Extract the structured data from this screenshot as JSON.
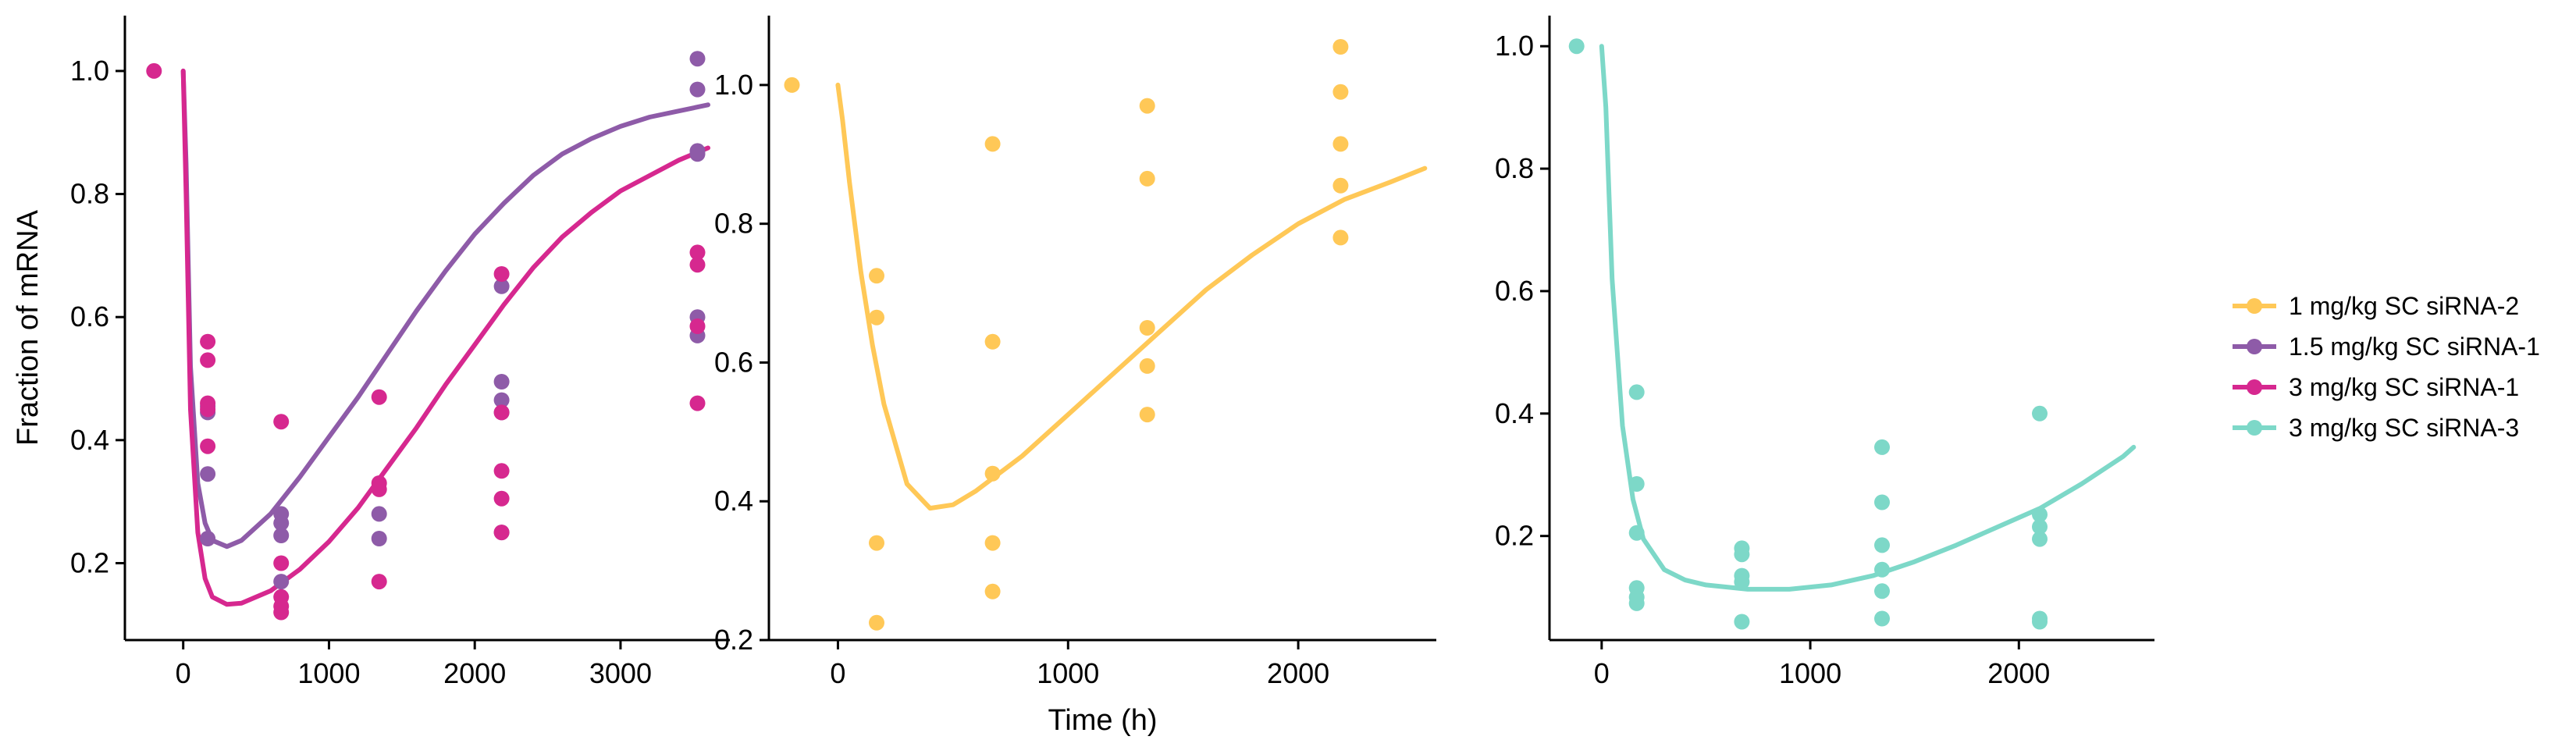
{
  "chart_data": [
    {
      "type": "scatter",
      "title": "",
      "xlabel": "",
      "ylabel": "Fraction of mRNA",
      "xlim": [
        -400,
        3750
      ],
      "ylim": [
        0.075,
        1.09
      ],
      "xticks": [
        0,
        1000,
        2000,
        3000
      ],
      "xtick_labels": [
        "0",
        "1000",
        "2000",
        "3000"
      ],
      "yticks": [
        0.2,
        0.4,
        0.6,
        0.8,
        1.0
      ],
      "ytick_labels": [
        "0.2",
        "0.4",
        "0.6",
        "0.8",
        "1.0"
      ],
      "series": [
        {
          "name": "1.5 mg/kg SC siRNA-1",
          "color": "#8E5BA8",
          "points": [
            [
              168,
              0.455
            ],
            [
              168,
              0.445
            ],
            [
              168,
              0.345
            ],
            [
              168,
              0.24
            ],
            [
              672,
              0.28
            ],
            [
              672,
              0.265
            ],
            [
              672,
              0.245
            ],
            [
              672,
              0.17
            ],
            [
              1344,
              0.28
            ],
            [
              1344,
              0.24
            ],
            [
              2184,
              0.65
            ],
            [
              2184,
              0.495
            ],
            [
              2184,
              0.465
            ],
            [
              2184,
              0.445
            ],
            [
              2184,
              0.25
            ],
            [
              3528,
              1.02
            ],
            [
              3528,
              0.97
            ],
            [
              3528,
              0.87
            ],
            [
              3528,
              0.865
            ],
            [
              3528,
              0.6
            ],
            [
              3528,
              0.57
            ]
          ],
          "fit": [
            [
              0,
              1.0
            ],
            [
              20,
              0.85
            ],
            [
              50,
              0.52
            ],
            [
              100,
              0.33
            ],
            [
              150,
              0.265
            ],
            [
              200,
              0.237
            ],
            [
              300,
              0.227
            ],
            [
              400,
              0.237
            ],
            [
              600,
              0.28
            ],
            [
              800,
              0.34
            ],
            [
              1000,
              0.405
            ],
            [
              1200,
              0.47
            ],
            [
              1400,
              0.54
            ],
            [
              1600,
              0.61
            ],
            [
              1800,
              0.675
            ],
            [
              2000,
              0.735
            ],
            [
              2200,
              0.785
            ],
            [
              2400,
              0.83
            ],
            [
              2600,
              0.865
            ],
            [
              2800,
              0.89
            ],
            [
              3000,
              0.91
            ],
            [
              3200,
              0.925
            ],
            [
              3400,
              0.935
            ],
            [
              3600,
              0.945
            ]
          ]
        },
        {
          "name": "3 mg/kg SC siRNA-1",
          "color": "#D6288F",
          "points": [
            [
              -200,
              1.0
            ],
            [
              168,
              0.56
            ],
            [
              168,
              0.53
            ],
            [
              168,
              0.46
            ],
            [
              168,
              0.45
            ],
            [
              168,
              0.39
            ],
            [
              672,
              0.43
            ],
            [
              672,
              0.2
            ],
            [
              672,
              0.145
            ],
            [
              672,
              0.13
            ],
            [
              672,
              0.12
            ],
            [
              1344,
              0.47
            ],
            [
              1344,
              0.33
            ],
            [
              1344,
              0.32
            ],
            [
              1344,
              0.17
            ],
            [
              2184,
              0.67
            ],
            [
              2184,
              0.445
            ],
            [
              2184,
              0.35
            ],
            [
              2184,
              0.305
            ],
            [
              2184,
              0.25
            ],
            [
              3528,
              0.705
            ],
            [
              3528,
              0.685
            ],
            [
              3528,
              0.585
            ],
            [
              3528,
              0.46
            ]
          ],
          "fit": [
            [
              0,
              1.0
            ],
            [
              20,
              0.8
            ],
            [
              50,
              0.45
            ],
            [
              100,
              0.25
            ],
            [
              150,
              0.175
            ],
            [
              200,
              0.145
            ],
            [
              300,
              0.133
            ],
            [
              400,
              0.135
            ],
            [
              600,
              0.155
            ],
            [
              800,
              0.19
            ],
            [
              1000,
              0.235
            ],
            [
              1200,
              0.29
            ],
            [
              1400,
              0.355
            ],
            [
              1600,
              0.42
            ],
            [
              1800,
              0.49
            ],
            [
              2000,
              0.555
            ],
            [
              2200,
              0.62
            ],
            [
              2400,
              0.68
            ],
            [
              2600,
              0.73
            ],
            [
              2800,
              0.77
            ],
            [
              3000,
              0.805
            ],
            [
              3200,
              0.83
            ],
            [
              3400,
              0.855
            ],
            [
              3600,
              0.875
            ]
          ]
        }
      ]
    },
    {
      "type": "scatter",
      "title": "",
      "xlabel": "Time (h)",
      "ylabel": "",
      "xlim": [
        -300,
        2600
      ],
      "ylim": [
        0.2,
        1.1
      ],
      "xticks": [
        0,
        1000,
        2000
      ],
      "xtick_labels": [
        "0",
        "1000",
        "2000"
      ],
      "yticks": [
        0.2,
        0.4,
        0.6,
        0.8,
        1.0
      ],
      "ytick_labels": [
        "0.2",
        "0.4",
        "0.6",
        "0.8",
        "1.0"
      ],
      "series": [
        {
          "name": "1 mg/kg SC siRNA-2",
          "color": "#FFC857",
          "points": [
            [
              -200,
              1.0
            ],
            [
              168,
              0.725
            ],
            [
              168,
              0.665
            ],
            [
              168,
              0.34
            ],
            [
              168,
              0.225
            ],
            [
              672,
              0.915
            ],
            [
              672,
              0.63
            ],
            [
              672,
              0.44
            ],
            [
              672,
              0.34
            ],
            [
              672,
              0.27
            ],
            [
              1344,
              0.97
            ],
            [
              1344,
              0.865
            ],
            [
              1344,
              0.65
            ],
            [
              1344,
              0.595
            ],
            [
              1344,
              0.525
            ],
            [
              2184,
              1.055
            ],
            [
              2184,
              0.99
            ],
            [
              2184,
              0.915
            ],
            [
              2184,
              0.855
            ],
            [
              2184,
              0.78
            ]
          ],
          "fit": [
            [
              0,
              1.0
            ],
            [
              20,
              0.95
            ],
            [
              50,
              0.86
            ],
            [
              100,
              0.73
            ],
            [
              150,
              0.625
            ],
            [
              200,
              0.54
            ],
            [
              300,
              0.425
            ],
            [
              400,
              0.39
            ],
            [
              500,
              0.395
            ],
            [
              600,
              0.415
            ],
            [
              800,
              0.465
            ],
            [
              1000,
              0.525
            ],
            [
              1200,
              0.585
            ],
            [
              1400,
              0.645
            ],
            [
              1600,
              0.705
            ],
            [
              1800,
              0.755
            ],
            [
              2000,
              0.8
            ],
            [
              2200,
              0.835
            ],
            [
              2400,
              0.86
            ],
            [
              2550,
              0.88
            ]
          ]
        }
      ]
    },
    {
      "type": "scatter",
      "title": "",
      "xlabel": "",
      "ylabel": "",
      "xlim": [
        -250,
        2650
      ],
      "ylim": [
        0.03,
        1.05
      ],
      "xticks": [
        0,
        1000,
        2000
      ],
      "xtick_labels": [
        "0",
        "1000",
        "2000"
      ],
      "yticks": [
        0.2,
        0.4,
        0.6,
        0.8,
        1.0
      ],
      "ytick_labels": [
        "0.2",
        "0.4",
        "0.6",
        "0.8",
        "1.0"
      ],
      "series": [
        {
          "name": "3 mg/kg SC siRNA-3",
          "color": "#7DD8C8",
          "points": [
            [
              -120,
              1.0
            ],
            [
              168,
              0.435
            ],
            [
              168,
              0.285
            ],
            [
              168,
              0.205
            ],
            [
              168,
              0.115
            ],
            [
              168,
              0.1
            ],
            [
              168,
              0.09
            ],
            [
              672,
              0.18
            ],
            [
              672,
              0.17
            ],
            [
              672,
              0.135
            ],
            [
              672,
              0.125
            ],
            [
              672,
              0.06
            ],
            [
              1344,
              0.345
            ],
            [
              1344,
              0.255
            ],
            [
              1344,
              0.185
            ],
            [
              1344,
              0.145
            ],
            [
              1344,
              0.11
            ],
            [
              1344,
              0.065
            ],
            [
              2100,
              0.4
            ],
            [
              2100,
              0.235
            ],
            [
              2100,
              0.215
            ],
            [
              2100,
              0.195
            ],
            [
              2100,
              0.065
            ],
            [
              2100,
              0.06
            ]
          ],
          "fit": [
            [
              0,
              1.0
            ],
            [
              20,
              0.9
            ],
            [
              50,
              0.62
            ],
            [
              100,
              0.38
            ],
            [
              150,
              0.26
            ],
            [
              200,
              0.195
            ],
            [
              300,
              0.145
            ],
            [
              400,
              0.128
            ],
            [
              500,
              0.12
            ],
            [
              700,
              0.113
            ],
            [
              900,
              0.113
            ],
            [
              1100,
              0.12
            ],
            [
              1300,
              0.135
            ],
            [
              1500,
              0.158
            ],
            [
              1700,
              0.185
            ],
            [
              1900,
              0.215
            ],
            [
              2100,
              0.245
            ],
            [
              2300,
              0.285
            ],
            [
              2500,
              0.33
            ],
            [
              2550,
              0.345
            ]
          ]
        }
      ]
    }
  ],
  "legend": {
    "placement": "right",
    "items": [
      {
        "label": "1 mg/kg SC siRNA-2",
        "color": "#FFC857"
      },
      {
        "label": "1.5 mg/kg SC siRNA-1",
        "color": "#8E5BA8"
      },
      {
        "label": "3 mg/kg SC siRNA-1",
        "color": "#D6288F"
      },
      {
        "label": "3 mg/kg SC siRNA-3",
        "color": "#7DD8C8"
      }
    ]
  }
}
